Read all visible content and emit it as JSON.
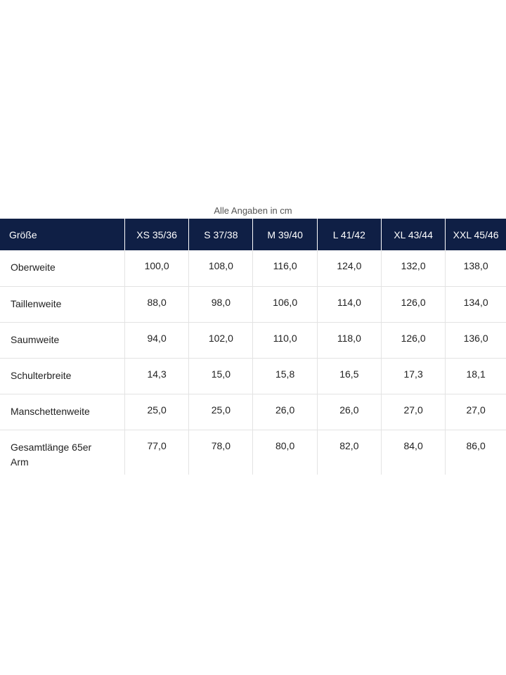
{
  "caption": "Alle Angaben in cm",
  "table": {
    "headers": [
      "Größe",
      "XS 35/36",
      "S 37/38",
      "M 39/40",
      "L 41/42",
      "XL 43/44",
      "XXL 45/46"
    ],
    "rows": [
      {
        "label": "Oberweite",
        "values": [
          "100,0",
          "108,0",
          "116,0",
          "124,0",
          "132,0",
          "138,0"
        ]
      },
      {
        "label": "Taillenweite",
        "values": [
          "88,0",
          "98,0",
          "106,0",
          "114,0",
          "126,0",
          "134,0"
        ]
      },
      {
        "label": "Saumweite",
        "values": [
          "94,0",
          "102,0",
          "110,0",
          "118,0",
          "126,0",
          "136,0"
        ]
      },
      {
        "label": "Schulterbreite",
        "values": [
          "14,3",
          "15,0",
          "15,8",
          "16,5",
          "17,3",
          "18,1"
        ]
      },
      {
        "label": "Manschettenweite",
        "values": [
          "25,0",
          "25,0",
          "26,0",
          "26,0",
          "27,0",
          "27,0"
        ]
      },
      {
        "label": "Gesamtlänge 65er Arm",
        "values": [
          "77,0",
          "78,0",
          "80,0",
          "82,0",
          "84,0",
          "86,0"
        ]
      }
    ]
  },
  "colors": {
    "header_background": "#0f1f45",
    "header_text": "#ffffff",
    "grid_line": "#e3e3e3"
  }
}
